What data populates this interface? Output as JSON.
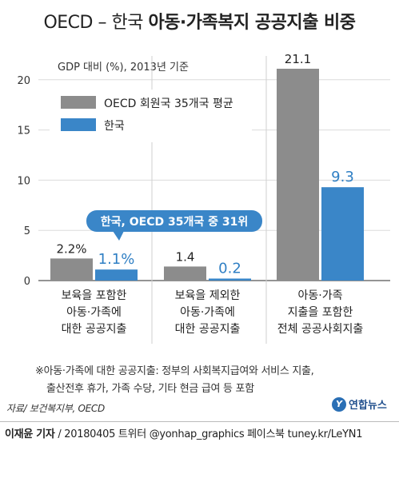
{
  "title_part1": "OECD – 한국 ",
  "title_part2": "아동·가족복지 공공지출 비중",
  "note": {
    "line1": "※아동·가족에 대한 공공지출: 정부의 사회복지급여와 서비스 지출,",
    "line2": "출산전후 휴가, 가족 수당, 기타 현금 급여 등 포함"
  },
  "source": "자료/ 보건복지부, OECD",
  "logo_text": "연합뉴스",
  "credit": {
    "reporter": "이재윤 기자",
    "rest": " / 20180405  트위터 @yonhap_graphics  페이스북 tuney.kr/LeYN1"
  },
  "callout": "한국, OECD 35개국 중 31위",
  "chart_data": {
    "type": "bar",
    "ylabel": "GDP 대비 (%), 2013년 기준",
    "ylim": [
      0,
      22
    ],
    "yticks": [
      0,
      5,
      10,
      15,
      20
    ],
    "grid": true,
    "legend_position": "top-left",
    "categories": [
      [
        "보육을 포함한",
        "아동·가족에",
        "대한 공공지출"
      ],
      [
        "보육을 제외한",
        "아동·가족에",
        "대한 공공지출"
      ],
      [
        "아동·가족",
        "지출을 포함한",
        "전체 공공사회지출"
      ]
    ],
    "series": [
      {
        "name": "OECD 회원국 35개국 평균",
        "values": [
          2.2,
          1.4,
          21.1
        ],
        "labels": [
          "2.2%",
          "1.4",
          "21.1"
        ],
        "color": "#8c8c8c",
        "label_color": "#222222"
      },
      {
        "name": "한국",
        "values": [
          1.1,
          0.2,
          9.3
        ],
        "labels": [
          "1.1%",
          "0.2",
          "9.3"
        ],
        "color": "#3a86c8",
        "label_color": "#2f7fc4"
      }
    ]
  }
}
